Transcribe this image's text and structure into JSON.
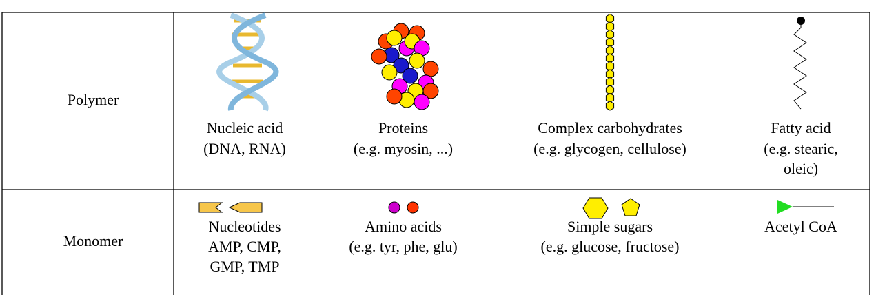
{
  "table": {
    "rows": [
      {
        "label": "Polymer",
        "cells": [
          {
            "lines": [
              "Nucleic acid",
              "(DNA, RNA)"
            ]
          },
          {
            "lines": [
              "Proteins",
              "(e.g. myosin, ...)"
            ]
          },
          {
            "lines": [
              "Complex carbohydrates",
              "(e.g. glycogen, cellulose)"
            ]
          },
          {
            "lines": [
              "Fatty acid",
              "(e.g. stearic,",
              "oleic)"
            ]
          }
        ]
      },
      {
        "label": "Monomer",
        "cells": [
          {
            "lines": [
              "Nucleotides",
              "AMP, CMP,",
              "GMP, TMP"
            ]
          },
          {
            "lines": [
              "Amino acids",
              "(e.g. tyr, phe, glu)"
            ]
          },
          {
            "lines": [
              "Simple sugars",
              "(e.g. glucose, fructose)"
            ]
          },
          {
            "lines": [
              "Acetyl CoA"
            ]
          }
        ]
      }
    ]
  }
}
